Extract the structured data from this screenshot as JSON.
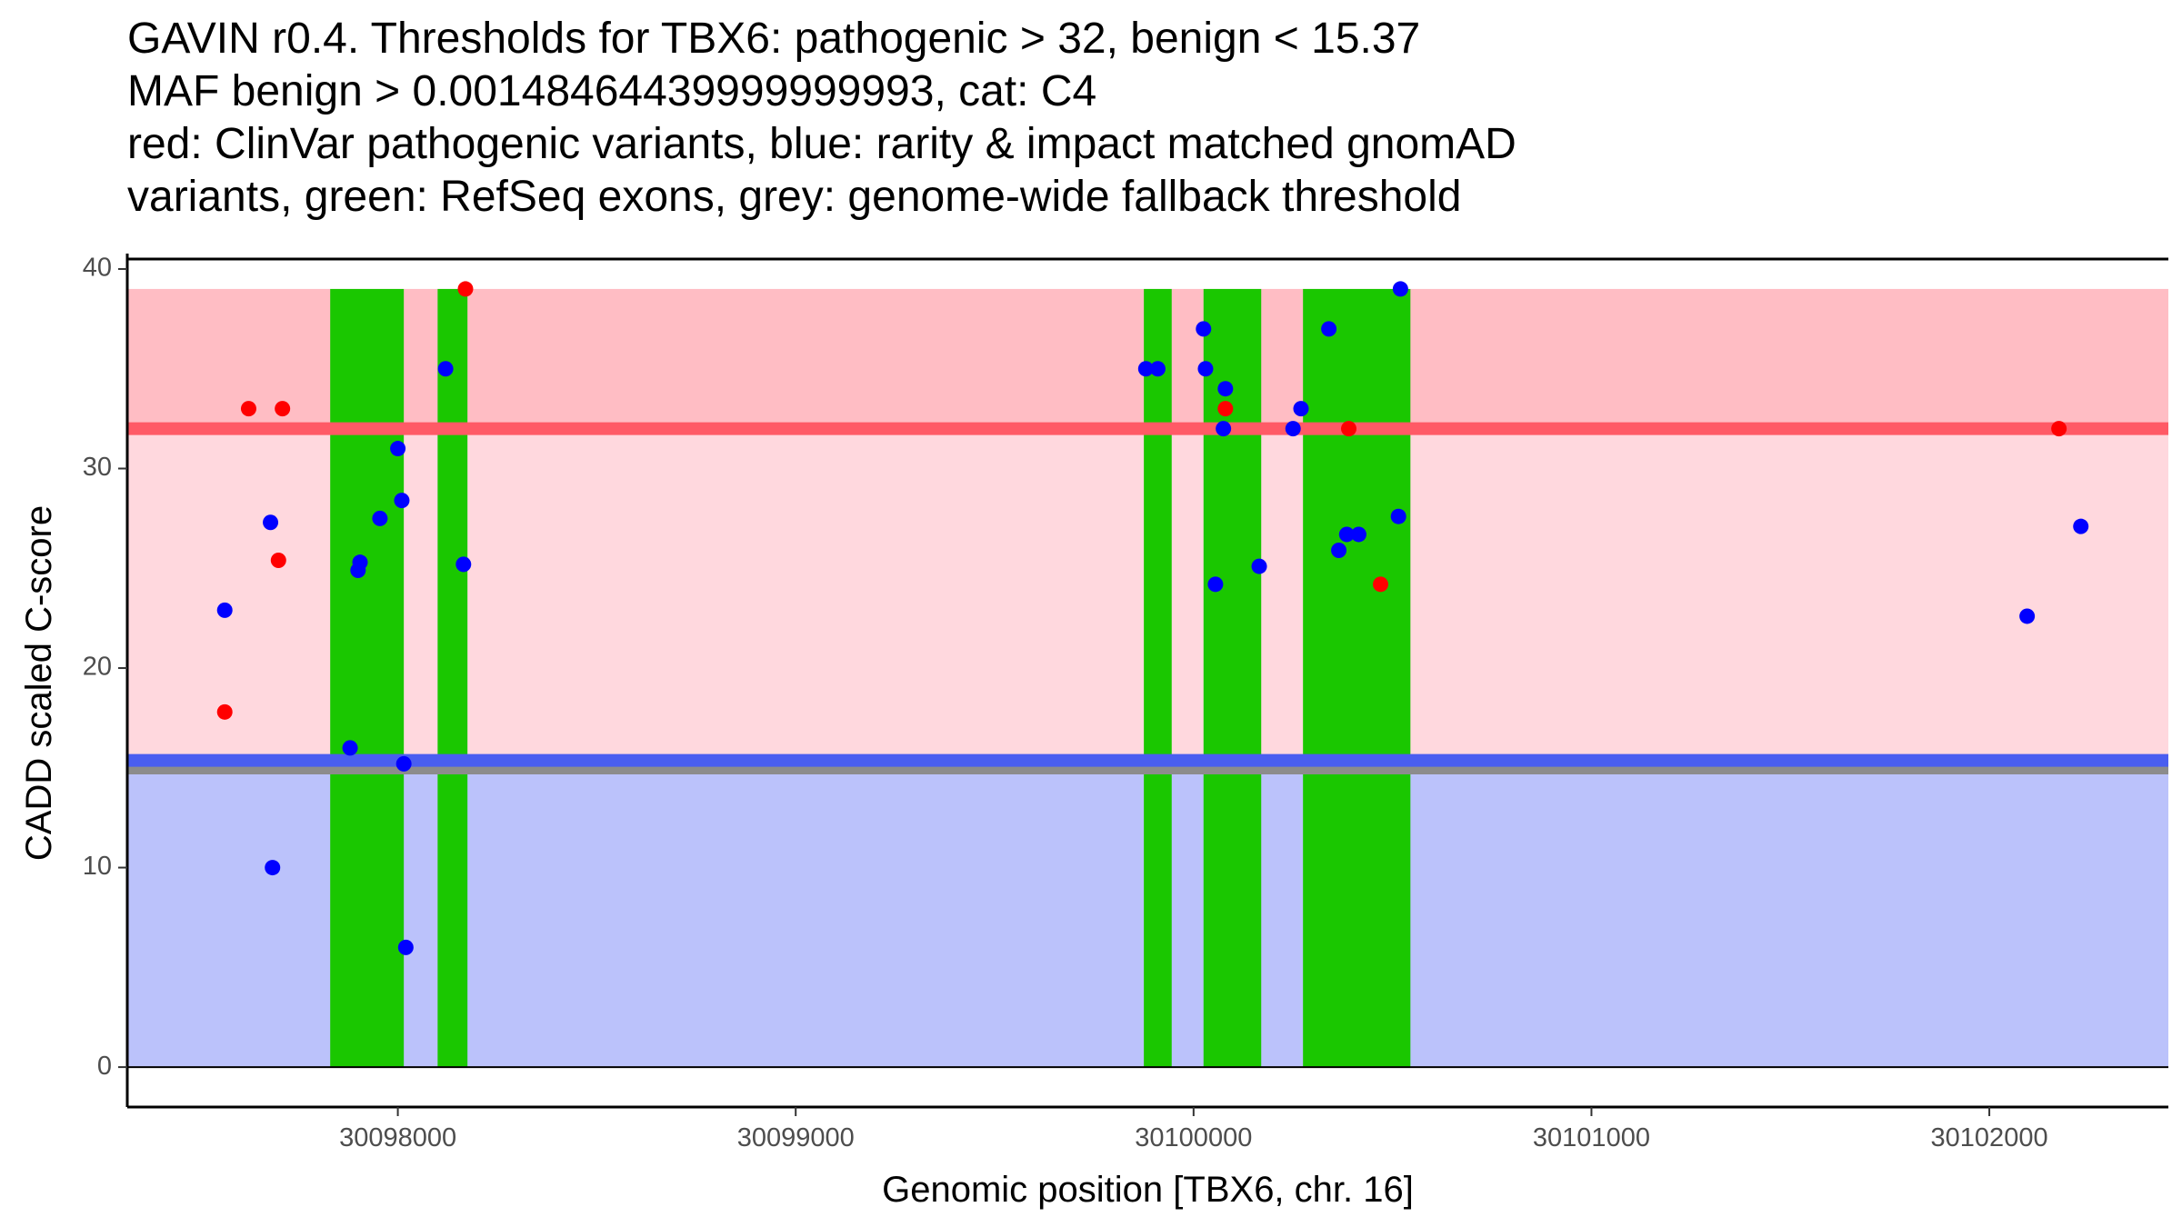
{
  "title_lines": [
    "GAVIN r0.4. Thresholds for TBX6: pathogenic > 32, benign < 15.37",
    "MAF benign > 0.00148464439999999993, cat: C4",
    "red: ClinVar pathogenic variants, blue: rarity & impact matched gnomAD",
    "variants, green: RefSeq exons, grey: genome-wide fallback threshold"
  ],
  "chart_data": {
    "type": "scatter",
    "title": "GAVIN r0.4. Thresholds for TBX6: pathogenic > 32, benign < 15.37 MAF benign > 0.00148464439999999993, cat: C4",
    "xlabel": "Genomic position [TBX6, chr. 16]",
    "ylabel": "CADD scaled C-score",
    "xlim": [
      30097320,
      30102450
    ],
    "ylim": [
      -2,
      40.5
    ],
    "x_ticks": [
      30098000,
      30099000,
      30100000,
      30101000,
      30102000
    ],
    "x_tick_labels": [
      "30098000",
      "30099000",
      "30100000",
      "30101000",
      "30102000"
    ],
    "y_ticks": [
      0,
      10,
      20,
      30,
      40
    ],
    "y_tick_labels": [
      "0",
      "10",
      "20",
      "30",
      "40"
    ],
    "grid": false,
    "colors": {
      "pathogenic_zone": "#ffbdc4",
      "vus_zone": "#ffd8de",
      "benign_zone": "#bbc2fb",
      "pathogenic_line": "#ff5a66",
      "benign_line": "#4a5ef0",
      "fallback_line": "#8c8c8c",
      "exon": "#1ac700",
      "clinvar_point": "#ff0000",
      "gnomad_point": "#0000ff"
    },
    "thresholds": {
      "pathogenic": 32,
      "benign": 15.37,
      "genome_wide_fallback": 14.9,
      "score_max": 39
    },
    "exons": [
      {
        "start": 30097830,
        "end": 30098015
      },
      {
        "start": 30098100,
        "end": 30098175
      },
      {
        "start": 30099875,
        "end": 30099945
      },
      {
        "start": 30100025,
        "end": 30100170
      },
      {
        "start": 30100275,
        "end": 30100545
      }
    ],
    "series": [
      {
        "name": "ClinVar pathogenic variants",
        "color": "#ff0000",
        "points": [
          {
            "x": 30097625,
            "y": 33
          },
          {
            "x": 30097710,
            "y": 33
          },
          {
            "x": 30097700,
            "y": 25.4
          },
          {
            "x": 30097565,
            "y": 17.8
          },
          {
            "x": 30098170,
            "y": 39
          },
          {
            "x": 30100080,
            "y": 33
          },
          {
            "x": 30100390,
            "y": 32
          },
          {
            "x": 30100470,
            "y": 24.2
          },
          {
            "x": 30102175,
            "y": 32
          }
        ]
      },
      {
        "name": "rarity & impact matched gnomAD variants",
        "color": "#0000ff",
        "points": [
          {
            "x": 30097565,
            "y": 22.9
          },
          {
            "x": 30097680,
            "y": 27.3
          },
          {
            "x": 30097685,
            "y": 10
          },
          {
            "x": 30097880,
            "y": 16
          },
          {
            "x": 30097900,
            "y": 24.9
          },
          {
            "x": 30097905,
            "y": 25.3
          },
          {
            "x": 30097955,
            "y": 27.5
          },
          {
            "x": 30098000,
            "y": 31
          },
          {
            "x": 30098010,
            "y": 28.4
          },
          {
            "x": 30098015,
            "y": 15.2
          },
          {
            "x": 30098020,
            "y": 6
          },
          {
            "x": 30098120,
            "y": 35
          },
          {
            "x": 30098165,
            "y": 25.2
          },
          {
            "x": 30099880,
            "y": 35
          },
          {
            "x": 30099910,
            "y": 35
          },
          {
            "x": 30100025,
            "y": 37
          },
          {
            "x": 30100030,
            "y": 35
          },
          {
            "x": 30100055,
            "y": 24.2
          },
          {
            "x": 30100080,
            "y": 34
          },
          {
            "x": 30100075,
            "y": 32
          },
          {
            "x": 30100165,
            "y": 25.1
          },
          {
            "x": 30100250,
            "y": 32
          },
          {
            "x": 30100270,
            "y": 33
          },
          {
            "x": 30100340,
            "y": 37
          },
          {
            "x": 30100365,
            "y": 25.9
          },
          {
            "x": 30100385,
            "y": 26.7
          },
          {
            "x": 30100415,
            "y": 26.7
          },
          {
            "x": 30100515,
            "y": 27.6
          },
          {
            "x": 30100520,
            "y": 39
          },
          {
            "x": 30102095,
            "y": 22.6
          },
          {
            "x": 30102230,
            "y": 27.1
          }
        ]
      }
    ]
  }
}
